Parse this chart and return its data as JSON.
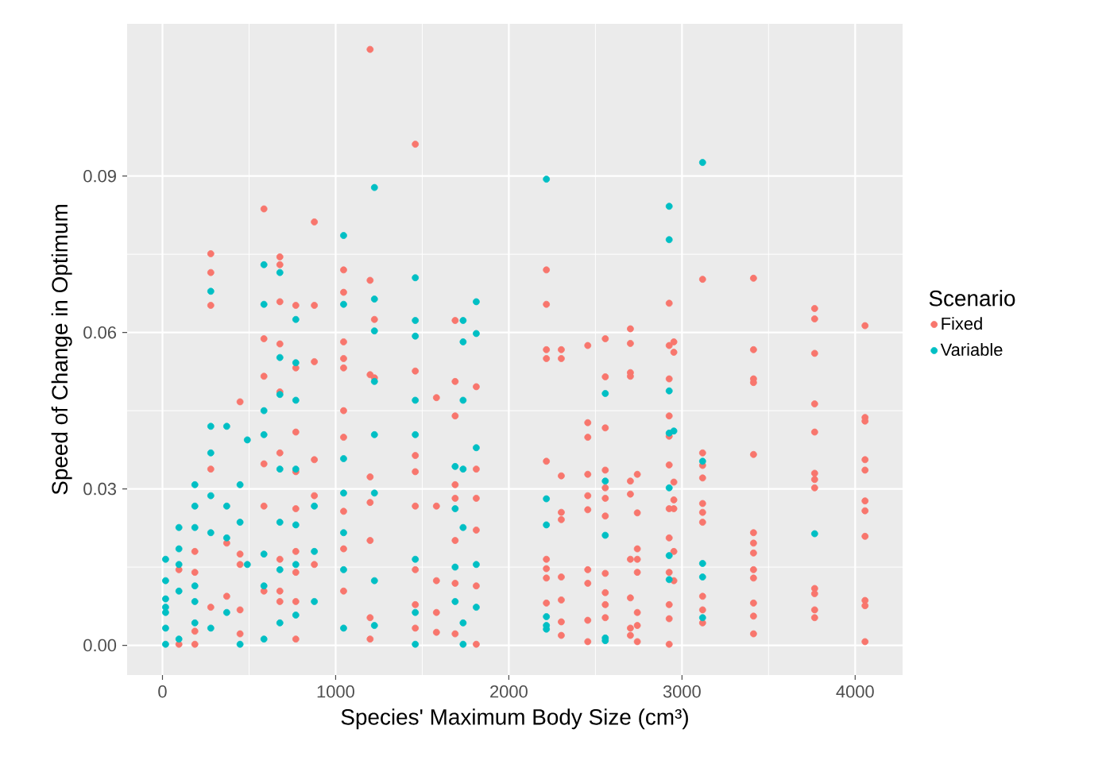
{
  "chart_data": {
    "type": "scatter",
    "xlabel": "Species' Maximum Body Size (cm³)",
    "ylabel": "Speed of Change in Optimum",
    "legend_title": "Scenario",
    "legend": "right",
    "grid": true,
    "marker": "circle",
    "xlim": [
      -204,
      4274
    ],
    "ylim": [
      -0.0057,
      0.1192
    ],
    "xticks": [
      0,
      1000,
      2000,
      3000,
      4000
    ],
    "yticks": [
      {
        "value": 0,
        "label": "0.00"
      },
      {
        "value": 0.03,
        "label": "0.03"
      },
      {
        "value": 0.06,
        "label": "0.06"
      },
      {
        "value": 0.09,
        "label": "0.09"
      }
    ],
    "series": [
      {
        "name": "Fixed",
        "color": "#f8766d",
        "x": [
          95,
          95,
          187,
          187,
          187,
          187,
          279,
          279,
          279,
          279,
          279,
          371,
          371,
          448,
          448,
          448,
          448,
          448,
          586,
          586,
          586,
          586,
          586,
          586,
          678,
          678,
          678,
          678,
          678,
          678,
          678,
          678,
          678,
          770,
          770,
          770,
          770,
          770,
          770,
          770,
          770,
          770,
          877,
          877,
          877,
          877,
          877,
          877,
          1046,
          1046,
          1046,
          1046,
          1046,
          1046,
          1046,
          1046,
          1046,
          1046,
          1199,
          1199,
          1199,
          1199,
          1199,
          1199,
          1199,
          1199,
          1224,
          1224,
          1460,
          1460,
          1460,
          1460,
          1460,
          1460,
          1460,
          1460,
          1582,
          1582,
          1582,
          1582,
          1582,
          1690,
          1690,
          1690,
          1690,
          1690,
          1690,
          1690,
          1690,
          1812,
          1812,
          1812,
          1812,
          1812,
          1812,
          2217,
          2217,
          2217,
          2217,
          2217,
          2217,
          2217,
          2217,
          2217,
          2303,
          2303,
          2303,
          2303,
          2303,
          2303,
          2303,
          2303,
          2303,
          2456,
          2456,
          2456,
          2456,
          2456,
          2456,
          2456,
          2456,
          2456,
          2456,
          2557,
          2557,
          2557,
          2557,
          2557,
          2557,
          2557,
          2557,
          2557,
          2557,
          2557,
          2702,
          2702,
          2702,
          2702,
          2702,
          2702,
          2702,
          2702,
          2702,
          2702,
          2742,
          2742,
          2742,
          2742,
          2742,
          2742,
          2742,
          2742,
          2926,
          2926,
          2926,
          2926,
          2926,
          2926,
          2926,
          2926,
          2926,
          2926,
          2926,
          2926,
          2953,
          2953,
          2953,
          2953,
          2953,
          2953,
          2953,
          3119,
          3119,
          3119,
          3119,
          3119,
          3119,
          3119,
          3119,
          3119,
          3119,
          3413,
          3413,
          3413,
          3413,
          3413,
          3413,
          3413,
          3413,
          3413,
          3413,
          3413,
          3413,
          3413,
          3766,
          3766,
          3766,
          3766,
          3766,
          3766,
          3766,
          3766,
          3766,
          3766,
          3766,
          3766,
          4057,
          4057,
          4057,
          4057,
          4057,
          4057,
          4057,
          4057,
          4057,
          4057,
          4057
        ],
        "values": [
          0.0145,
          0.0002,
          0.018,
          0.014,
          0.0002,
          0.0027,
          0.0751,
          0.0715,
          0.0652,
          0.0338,
          0.0073,
          0.0196,
          0.0094,
          0.0467,
          0.0175,
          0.0155,
          0.0068,
          0.0022,
          0.0837,
          0.0588,
          0.0516,
          0.0348,
          0.0267,
          0.0104,
          0.0745,
          0.073,
          0.0659,
          0.0578,
          0.0486,
          0.0369,
          0.0165,
          0.0104,
          0.0084,
          0.0652,
          0.0532,
          0.0409,
          0.0333,
          0.0262,
          0.018,
          0.014,
          0.0084,
          0.0012,
          0.0812,
          0.0652,
          0.0544,
          0.0356,
          0.0287,
          0.0155,
          0.072,
          0.0677,
          0.0582,
          0.055,
          0.0532,
          0.045,
          0.0399,
          0.0257,
          0.0185,
          0.0104,
          0.1143,
          0.07,
          0.0519,
          0.0323,
          0.0274,
          0.0201,
          0.0053,
          0.0012,
          0.0625,
          0.0513,
          0.0961,
          0.0526,
          0.0364,
          0.0333,
          0.0267,
          0.0145,
          0.0078,
          0.0033,
          0.0475,
          0.0267,
          0.0124,
          0.0063,
          0.0025,
          0.0623,
          0.0506,
          0.044,
          0.0308,
          0.0282,
          0.0201,
          0.0119,
          0.0022,
          0.0496,
          0.0338,
          0.0282,
          0.0221,
          0.0114,
          0.0002,
          0.072,
          0.0654,
          0.0567,
          0.055,
          0.0353,
          0.0165,
          0.0147,
          0.0129,
          0.0081,
          0.0567,
          0.055,
          0.0325,
          0.0255,
          0.0241,
          0.0131,
          0.0087,
          0.0045,
          0.0019,
          0.0575,
          0.0427,
          0.0399,
          0.0328,
          0.0287,
          0.026,
          0.0145,
          0.0119,
          0.0048,
          0.0007,
          0.0588,
          0.0515,
          0.0417,
          0.0336,
          0.0302,
          0.0282,
          0.0248,
          0.0138,
          0.0101,
          0.0078,
          0.0053,
          0.0607,
          0.0579,
          0.0523,
          0.0516,
          0.0315,
          0.029,
          0.0165,
          0.0091,
          0.0033,
          0.0019,
          0.0328,
          0.0254,
          0.0185,
          0.0165,
          0.014,
          0.0063,
          0.0038,
          0.0007,
          0.0656,
          0.0575,
          0.0511,
          0.044,
          0.0401,
          0.0346,
          0.0262,
          0.0206,
          0.014,
          0.0078,
          0.0051,
          0.0002,
          0.0582,
          0.0562,
          0.0313,
          0.0279,
          0.0262,
          0.018,
          0.0124,
          0.0702,
          0.0369,
          0.0345,
          0.0321,
          0.0272,
          0.0255,
          0.0236,
          0.0094,
          0.0068,
          0.0043,
          0.0704,
          0.0567,
          0.0511,
          0.0504,
          0.0366,
          0.0216,
          0.0196,
          0.0177,
          0.0145,
          0.0129,
          0.0081,
          0.0056,
          0.0022,
          0.0646,
          0.0626,
          0.056,
          0.0463,
          0.0409,
          0.033,
          0.0318,
          0.0302,
          0.0109,
          0.0099,
          0.0068,
          0.0053,
          0.0613,
          0.0437,
          0.043,
          0.0356,
          0.0336,
          0.0277,
          0.0258,
          0.0209,
          0.0086,
          0.0076,
          0.0007
        ]
      },
      {
        "name": "Variable",
        "color": "#00bfc4",
        "x": [
          18,
          18,
          18,
          18,
          18,
          18,
          18,
          95,
          95,
          95,
          95,
          95,
          187,
          187,
          187,
          187,
          187,
          187,
          279,
          279,
          279,
          279,
          279,
          279,
          371,
          371,
          371,
          371,
          448,
          448,
          448,
          490,
          490,
          586,
          586,
          586,
          586,
          586,
          586,
          586,
          678,
          678,
          678,
          678,
          678,
          678,
          678,
          770,
          770,
          770,
          770,
          770,
          770,
          770,
          877,
          877,
          877,
          1046,
          1046,
          1046,
          1046,
          1046,
          1046,
          1046,
          1224,
          1224,
          1224,
          1224,
          1224,
          1224,
          1224,
          1224,
          1460,
          1460,
          1460,
          1460,
          1460,
          1460,
          1460,
          1460,
          1690,
          1690,
          1690,
          1690,
          1736,
          1736,
          1736,
          1736,
          1736,
          1736,
          1736,
          1812,
          1812,
          1812,
          1812,
          1812,
          2217,
          2217,
          2217,
          2217,
          2217,
          2217,
          2557,
          2557,
          2557,
          2557,
          2557,
          2926,
          2926,
          2926,
          2926,
          2926,
          2926,
          2926,
          2953,
          3119,
          3119,
          3119,
          3119,
          3119,
          3766
        ],
        "values": [
          0.0165,
          0.0124,
          0.0089,
          0.0063,
          0.0033,
          0.0002,
          0.0073,
          0.0226,
          0.0185,
          0.0155,
          0.0012,
          0.0104,
          0.0308,
          0.0267,
          0.0226,
          0.0114,
          0.0084,
          0.0043,
          0.0679,
          0.042,
          0.0369,
          0.0287,
          0.0216,
          0.0033,
          0.042,
          0.0267,
          0.0206,
          0.0063,
          0.0308,
          0.0236,
          0.0002,
          0.0394,
          0.0155,
          0.073,
          0.0654,
          0.045,
          0.0404,
          0.0175,
          0.0114,
          0.0012,
          0.0715,
          0.0552,
          0.0481,
          0.0338,
          0.0236,
          0.0145,
          0.0043,
          0.0625,
          0.0542,
          0.047,
          0.0338,
          0.0231,
          0.0155,
          0.0058,
          0.0267,
          0.018,
          0.0084,
          0.0786,
          0.0654,
          0.0358,
          0.0292,
          0.0216,
          0.0145,
          0.0033,
          0.0878,
          0.0664,
          0.0603,
          0.0506,
          0.0404,
          0.0292,
          0.0124,
          0.0038,
          0.0705,
          0.0623,
          0.0593,
          0.047,
          0.0404,
          0.0165,
          0.0063,
          0.0002,
          0.0343,
          0.0262,
          0.015,
          0.0084,
          0.0623,
          0.0582,
          0.047,
          0.0338,
          0.0226,
          0.0043,
          0.0002,
          0.0659,
          0.0598,
          0.0379,
          0.0155,
          0.0073,
          0.0894,
          0.0281,
          0.0231,
          0.0055,
          0.0038,
          0.0031,
          0.0483,
          0.0315,
          0.0211,
          0.0014,
          0.0009,
          0.0842,
          0.0778,
          0.0488,
          0.0407,
          0.0302,
          0.0172,
          0.0126,
          0.0411,
          0.0926,
          0.0353,
          0.0157,
          0.0131,
          0.0053,
          0.0214
        ]
      }
    ]
  }
}
